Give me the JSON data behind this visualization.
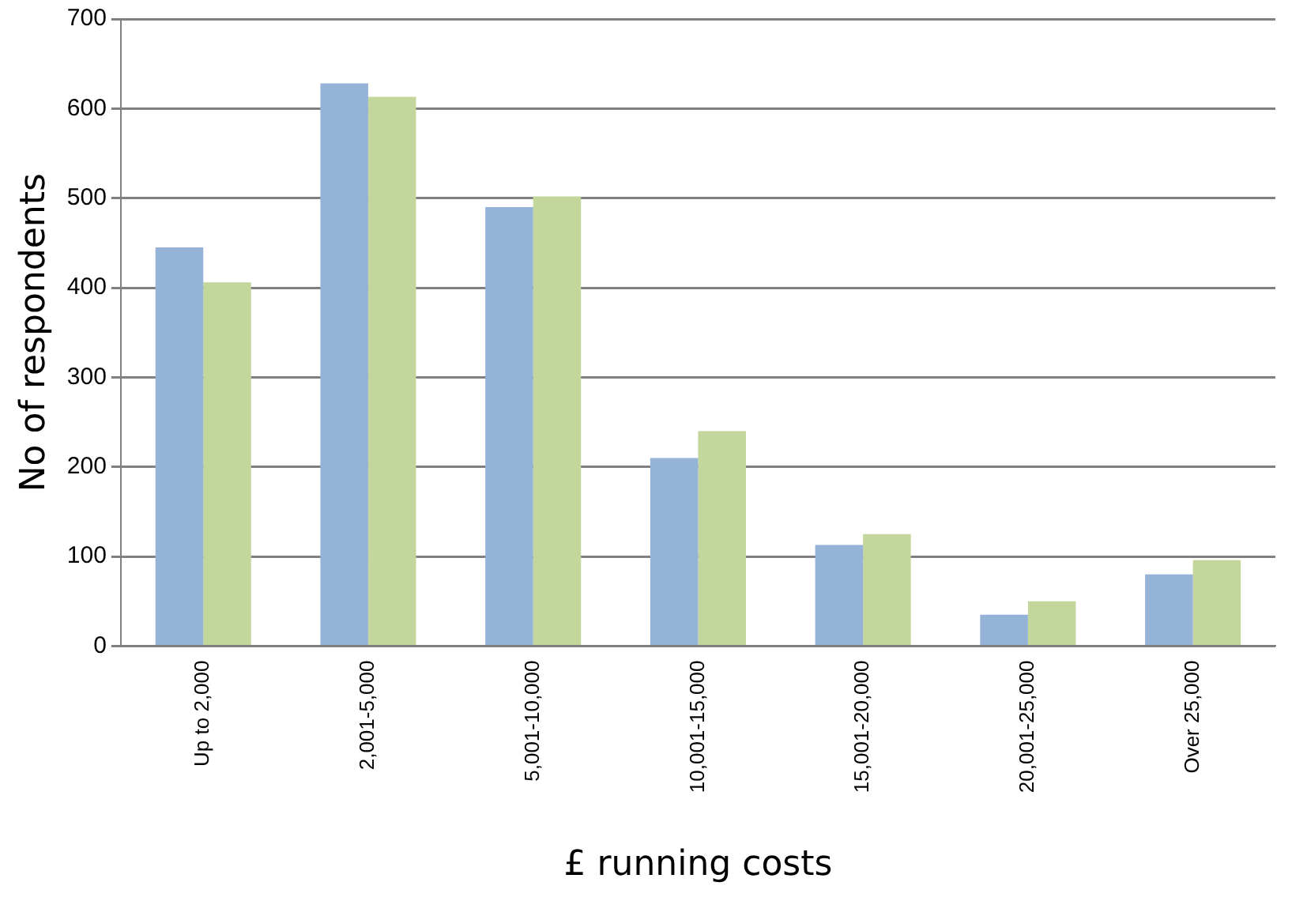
{
  "chart_data": {
    "type": "bar",
    "xlabel": "£ running costs",
    "ylabel": "No of respondents",
    "categories": [
      "Up to 2,000",
      "2,001-5,000",
      "5,001-10,000",
      "10,001-15,000",
      "15,001-20,000",
      "20,001-25,000",
      "Over 25,000"
    ],
    "series": [
      {
        "color": "#95b3d7",
        "values": [
          445,
          628,
          490,
          210,
          113,
          35,
          80
        ]
      },
      {
        "color": "#c3d69b",
        "values": [
          406,
          613,
          502,
          240,
          125,
          50,
          96
        ]
      }
    ],
    "ylim": [
      0,
      700
    ],
    "yticks": [
      0,
      100,
      200,
      300,
      400,
      500,
      600,
      700
    ],
    "grid": "y",
    "legend": false
  }
}
